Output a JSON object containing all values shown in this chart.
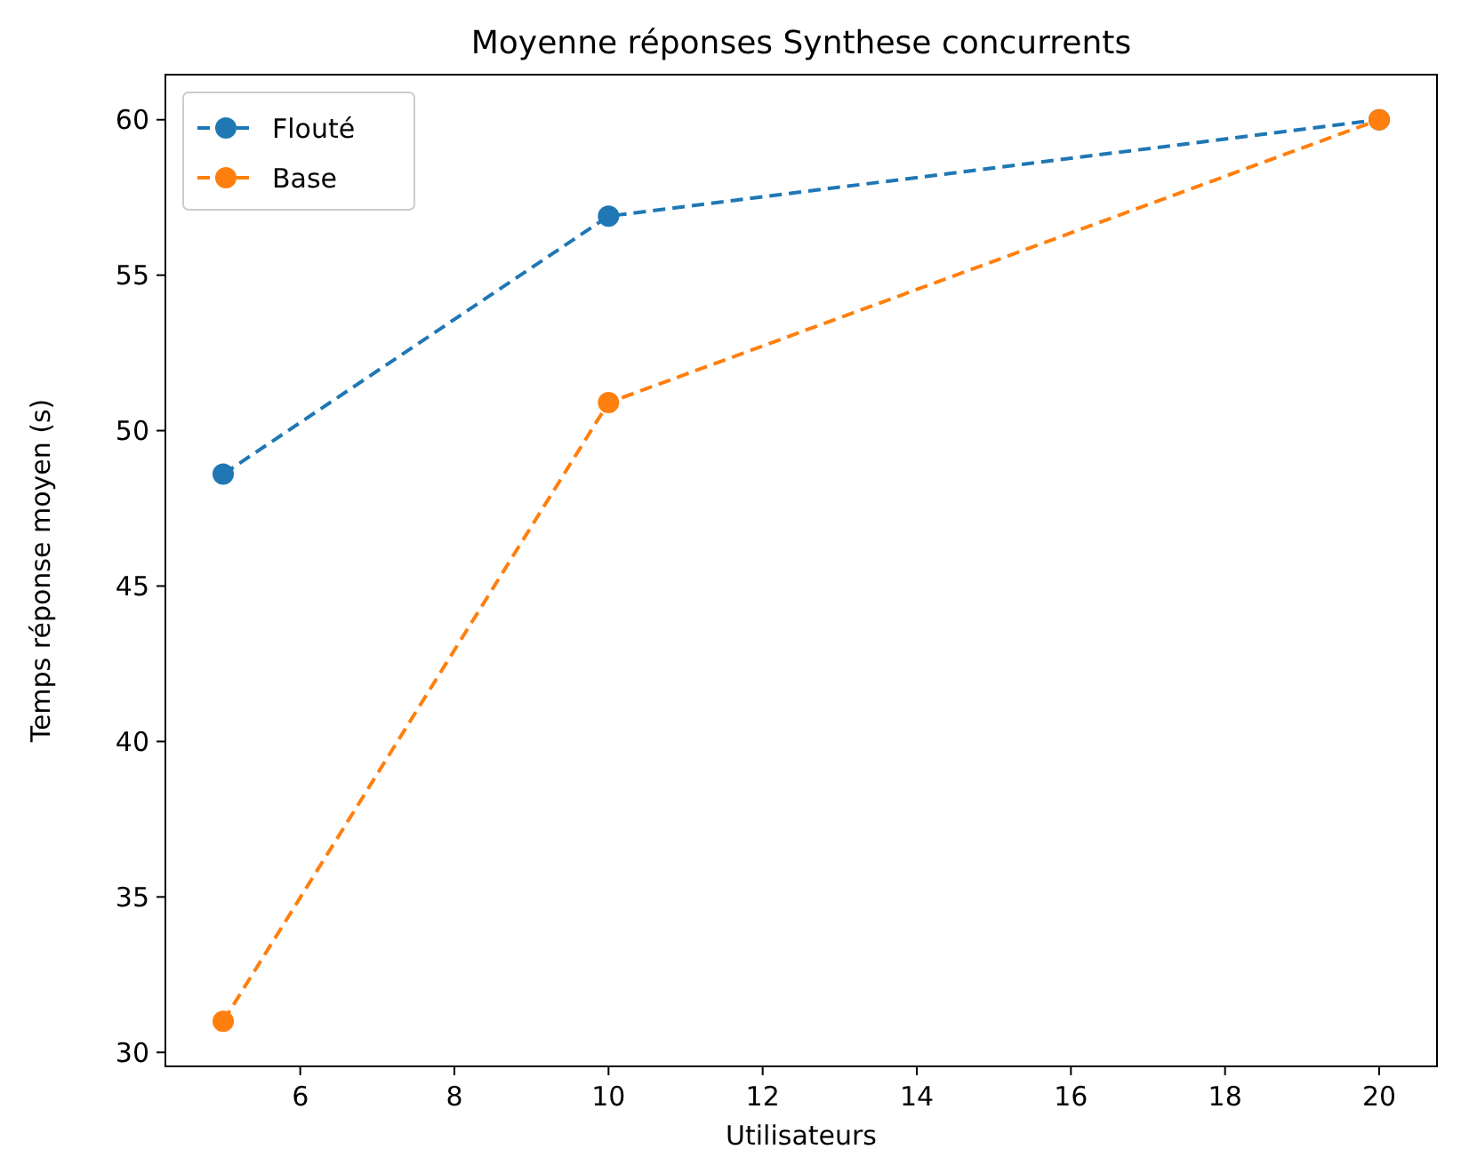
{
  "chart_data": {
    "type": "line",
    "title": "Moyenne réponses Synthese concurrents",
    "xlabel": "Utilisateurs",
    "ylabel": "Temps réponse moyen (s)",
    "x": [
      5,
      10,
      20
    ],
    "series": [
      {
        "name": "Flouté",
        "color": "#1f77b4",
        "values": [
          48.6,
          56.9,
          60.0
        ]
      },
      {
        "name": "Base",
        "color": "#ff7f0e",
        "values": [
          31.0,
          50.9,
          60.0
        ]
      }
    ],
    "xlim": [
      4.25,
      20.75
    ],
    "xticks": [
      6,
      8,
      10,
      12,
      14,
      16,
      18,
      20
    ],
    "ylim": [
      29.55,
      61.45
    ],
    "yticks": [
      30,
      35,
      40,
      45,
      50,
      55,
      60
    ],
    "grid": false,
    "legend": "top left",
    "marker": "circle",
    "line_style": "dashed"
  }
}
